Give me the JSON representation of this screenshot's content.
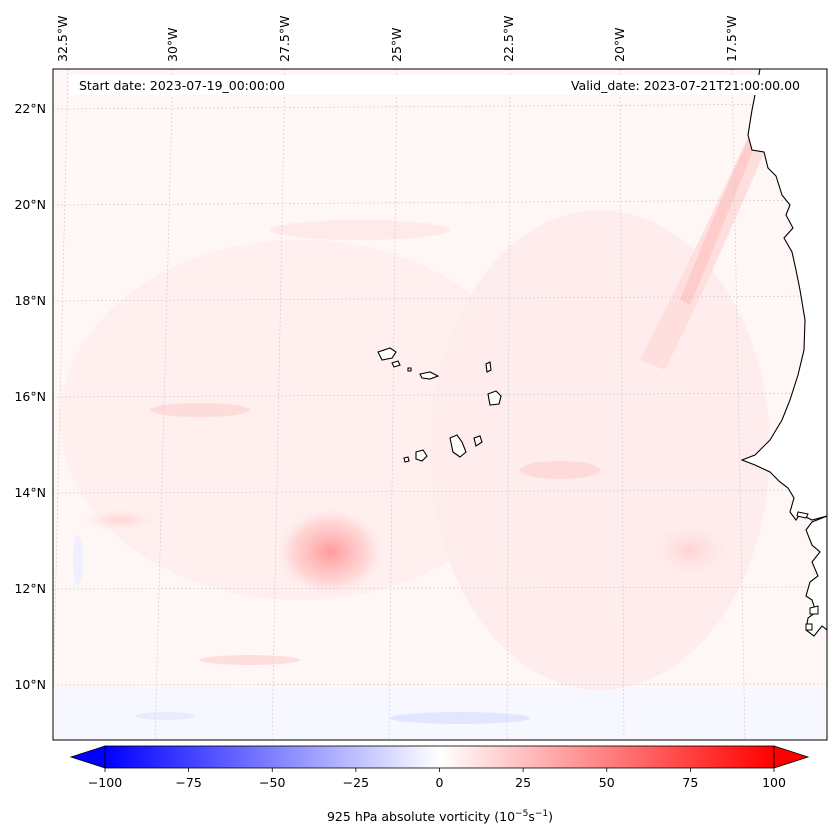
{
  "map": {
    "start_date": "Start date: 2023-07-19_00:00:00",
    "valid_date": "Valid_date: 2023-07-21T21:00:00.00",
    "lon_labels": [
      "32.5°W",
      "30°W",
      "27.5°W",
      "25°W",
      "22.5°W",
      "20°W",
      "17.5°W"
    ],
    "lat_labels": [
      "22°N",
      "20°N",
      "18°N",
      "16°N",
      "14°N",
      "12°N",
      "10°N"
    ],
    "region_features": [
      "Cabo Verde islands",
      "West African coastline"
    ],
    "colors": {
      "negative": "#0000ff",
      "neutral": "#ffffff",
      "positive": "#ff0000",
      "field_background": "#fff4f4",
      "coastline": "#000000"
    }
  },
  "colorbar": {
    "min": -100,
    "max": 100,
    "tick_labels": [
      "−100",
      "−75",
      "−50",
      "−25",
      "0",
      "25",
      "50",
      "75",
      "100"
    ],
    "label_main": "925 hPa absolute vorticity (10",
    "label_exp1": "−5",
    "label_mid": "s",
    "label_exp2": "−1",
    "label_end": ")"
  }
}
